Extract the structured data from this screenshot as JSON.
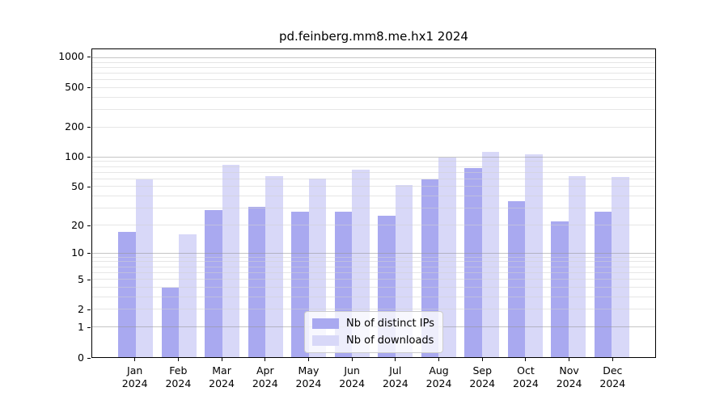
{
  "title": "pd.feinberg.mm8.me.hx1 2024",
  "chart_data": {
    "type": "bar",
    "title": "pd.feinberg.mm8.me.hx1 2024",
    "x_months": [
      "Jan",
      "Feb",
      "Mar",
      "Apr",
      "May",
      "Jun",
      "Jul",
      "Aug",
      "Sep",
      "Oct",
      "Nov",
      "Dec"
    ],
    "x_year": "2024",
    "series": [
      {
        "name": "Nb of distinct IPs",
        "color": "#a9a9f0",
        "values": [
          17,
          4,
          29,
          31,
          28,
          28,
          25,
          60,
          78,
          36,
          22,
          28
        ]
      },
      {
        "name": "Nb of downloads",
        "color": "#d8d8f8",
        "values": [
          60,
          16,
          84,
          65,
          61,
          75,
          52,
          100,
          114,
          107,
          64,
          63
        ]
      }
    ],
    "yscale": "log1p",
    "ylim": [
      0,
      1226
    ],
    "y_ticks": [
      0,
      1,
      2,
      5,
      10,
      20,
      50,
      100,
      200,
      500,
      1000
    ],
    "y_minor_gridlines": [
      3,
      4,
      6,
      7,
      8,
      9,
      30,
      40,
      60,
      70,
      80,
      90,
      300,
      400,
      600,
      700,
      800,
      900
    ],
    "y_major_gridlines": [
      1,
      10,
      100,
      1000
    ],
    "grid": true,
    "legend_position": "lower center",
    "xlabel": "",
    "ylabel": ""
  },
  "colors": {
    "bar_distinct_ips": "#a9a9f0",
    "bar_downloads": "#d8d8f8",
    "grid_major": "#999999",
    "grid_minor": "#d9d9d9",
    "axis": "#000000"
  }
}
